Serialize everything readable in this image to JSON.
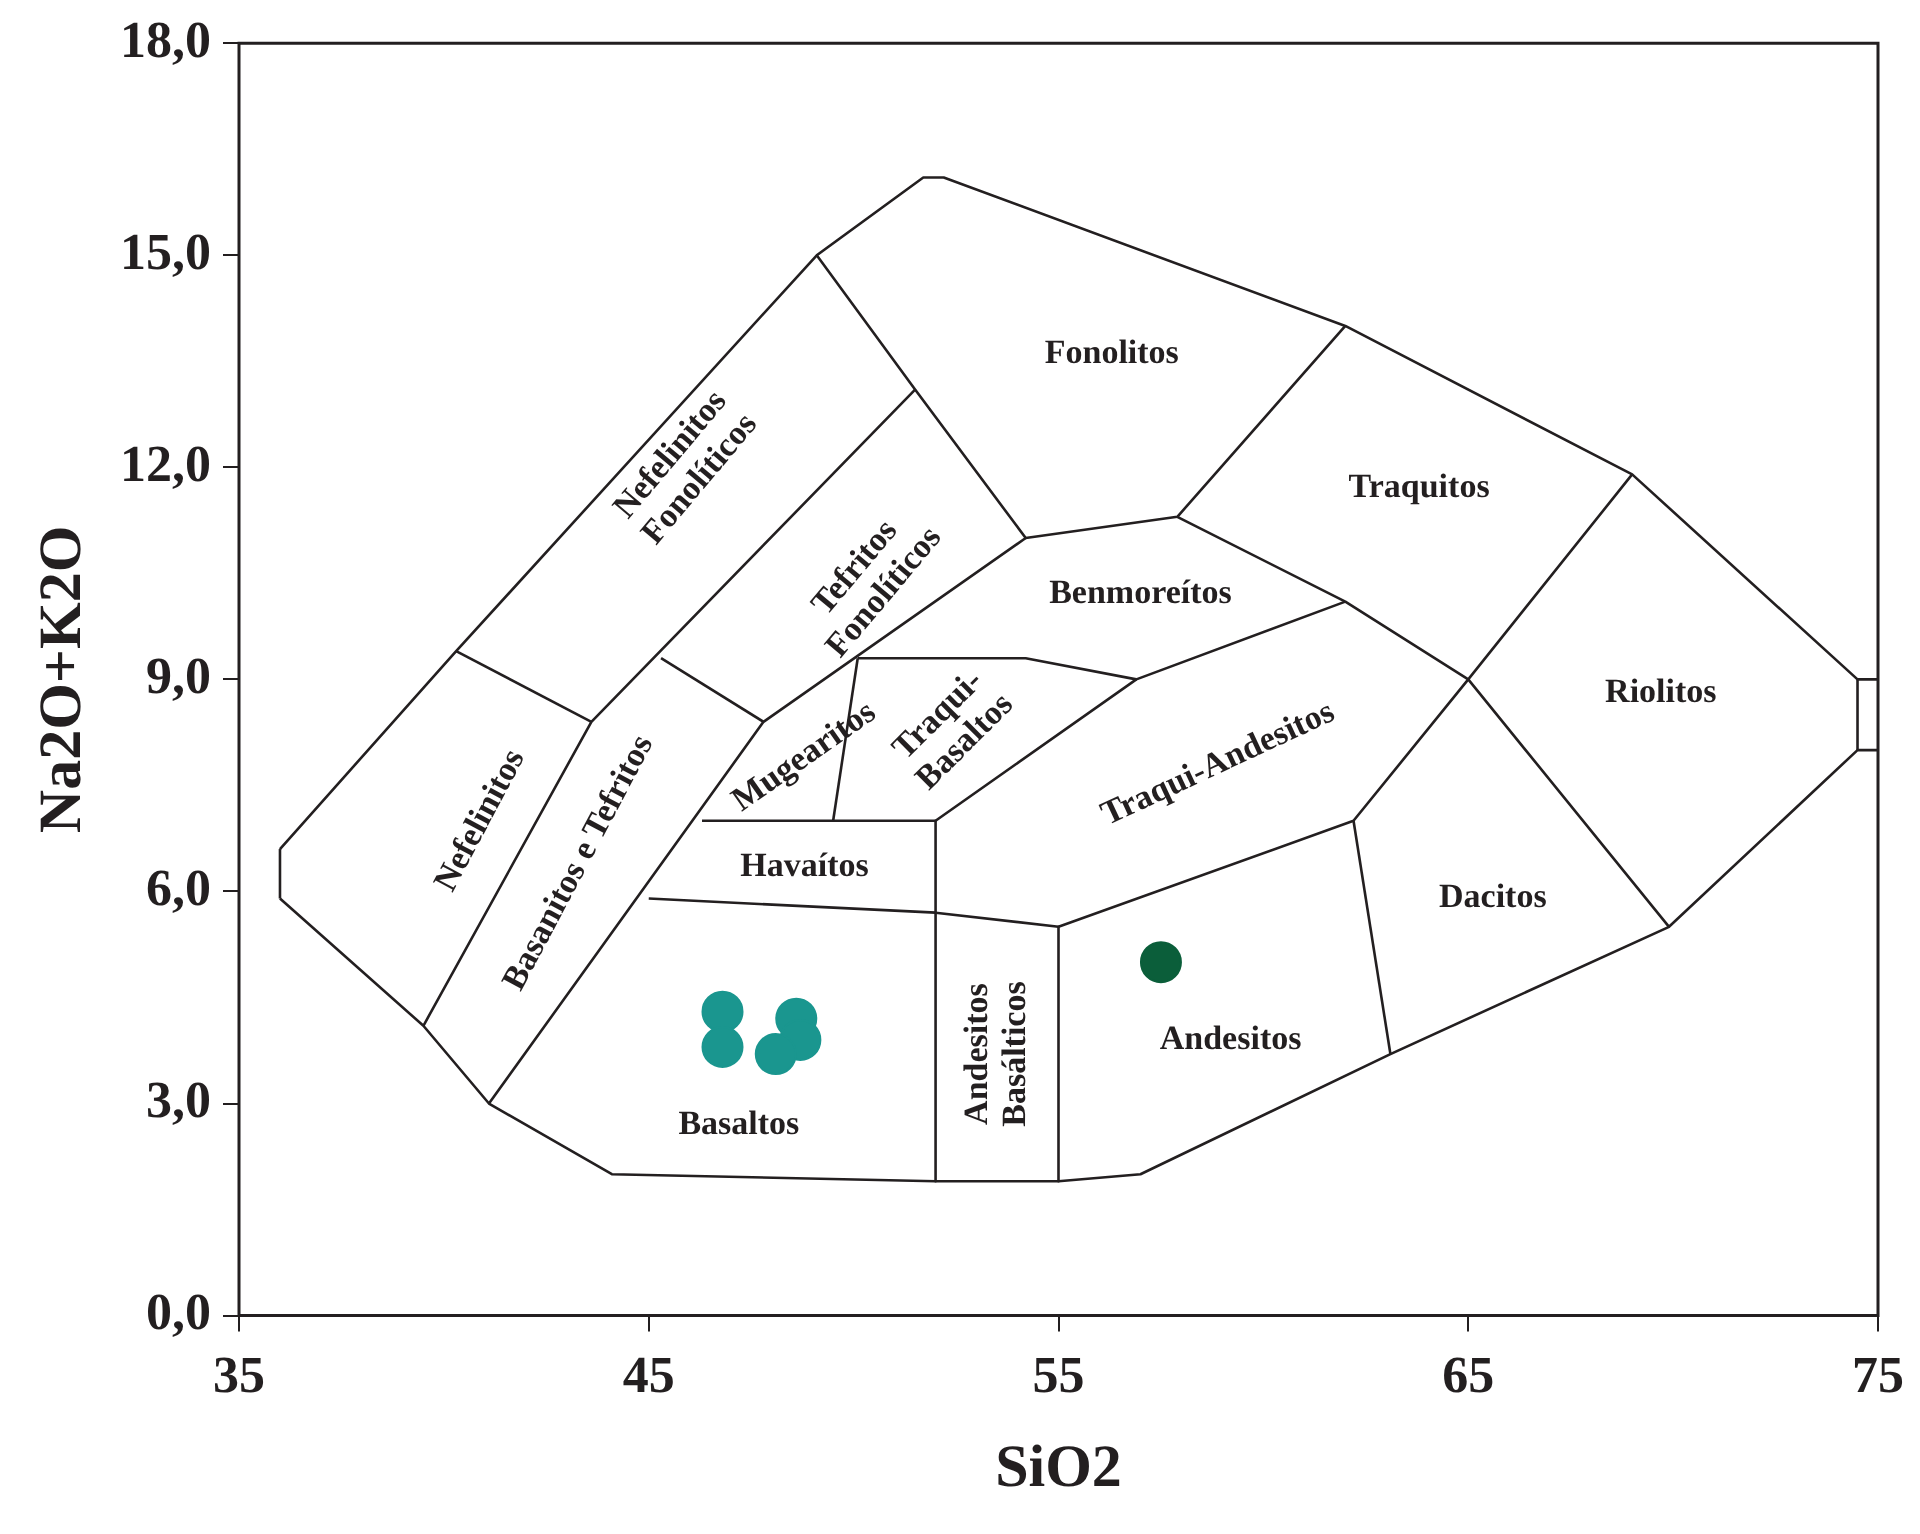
{
  "chart_data": {
    "type": "scatter",
    "xlabel": "SiO2",
    "ylabel": "Na2O+K2O",
    "xlim": [
      35,
      75
    ],
    "ylim": [
      0,
      18
    ],
    "xticks": [
      35,
      45,
      55,
      65,
      75
    ],
    "yticks": [
      {
        "value": 0,
        "label": "0,0"
      },
      {
        "value": 3,
        "label": "3,0"
      },
      {
        "value": 6,
        "label": "6,0"
      },
      {
        "value": 9,
        "label": "9,0"
      },
      {
        "value": 12,
        "label": "12,0"
      },
      {
        "value": 15,
        "label": "15,0"
      },
      {
        "value": 18,
        "label": "18,0"
      }
    ],
    "grid": false,
    "legend": false,
    "series": [
      {
        "color": "#1a968f",
        "x": [
          46.8,
          46.8,
          48.6,
          48.7,
          48.1
        ],
        "values": [
          4.3,
          3.8,
          4.2,
          3.9,
          3.7
        ]
      },
      {
        "color": "#0b5e3a",
        "x": [
          57.5
        ],
        "values": [
          5.0
        ]
      },
      {
        "type": "line",
        "color": "#231f20",
        "x": [
          36,
          39.5,
          41.1,
          44.1,
          52,
          55,
          57,
          63.1,
          69.9,
          74.5,
          75
        ],
        "values": [
          5.9,
          4.1,
          3.0,
          2.0,
          1.9,
          1.9,
          2.0,
          3.7,
          5.5,
          8.0,
          8.0
        ]
      },
      {
        "type": "line",
        "color": "#231f20",
        "x": [
          36,
          40.3,
          49.1,
          51.7,
          52.2,
          62,
          69,
          74.5,
          75
        ],
        "values": [
          6.6,
          9.4,
          15.0,
          16.1,
          16.1,
          14.0,
          11.9,
          9.0,
          9.0
        ]
      },
      {
        "type": "line",
        "color": "#231f20",
        "x": [
          36,
          36
        ],
        "values": [
          5.9,
          6.6
        ]
      },
      {
        "type": "line",
        "color": "#231f20",
        "x": [
          74.5,
          74.5
        ],
        "values": [
          8.0,
          9.0
        ]
      },
      {
        "type": "line",
        "color": "#231f20",
        "x": [
          40.3,
          43.6
        ],
        "values": [
          9.4,
          8.4
        ]
      },
      {
        "type": "line",
        "color": "#231f20",
        "x": [
          39.5,
          43.6,
          51.5
        ],
        "values": [
          4.1,
          8.4,
          13.1
        ]
      },
      {
        "type": "line",
        "color": "#231f20",
        "x": [
          49.1,
          51.5,
          54.2,
          57.9,
          62
        ],
        "values": [
          15.0,
          13.1,
          11.0,
          11.3,
          14.0
        ]
      },
      {
        "type": "line",
        "color": "#231f20",
        "x": [
          41.1,
          47.8,
          54.2
        ],
        "values": [
          3.0,
          8.4,
          11.0
        ]
      },
      {
        "type": "line",
        "color": "#231f20",
        "x": [
          45.3,
          47.8
        ],
        "values": [
          9.3,
          8.4
        ]
      },
      {
        "type": "line",
        "color": "#231f20",
        "x": [
          50.1,
          54.2,
          56.9,
          62
        ],
        "values": [
          9.3,
          9.3,
          9.0,
          10.1
        ]
      },
      {
        "type": "line",
        "color": "#231f20",
        "x": [
          57.9,
          62,
          65,
          69
        ],
        "values": [
          11.3,
          10.1,
          9.0,
          11.9
        ]
      },
      {
        "type": "line",
        "color": "#231f20",
        "x": [
          46.3,
          52,
          56.9
        ],
        "values": [
          7.0,
          7.0,
          9.0
        ]
      },
      {
        "type": "line",
        "color": "#231f20",
        "x": [
          49.5,
          50.1
        ],
        "values": [
          7.0,
          9.3
        ]
      },
      {
        "type": "line",
        "color": "#231f20",
        "x": [
          52,
          52
        ],
        "values": [
          7.0,
          1.9
        ]
      },
      {
        "type": "line",
        "color": "#231f20",
        "x": [
          45,
          52,
          55,
          62.2,
          65,
          69.9
        ],
        "values": [
          5.9,
          5.7,
          5.5,
          7.0,
          9.0,
          5.5
        ]
      },
      {
        "type": "line",
        "color": "#231f20",
        "x": [
          55,
          55
        ],
        "values": [
          5.5,
          1.9
        ]
      },
      {
        "type": "line",
        "color": "#231f20",
        "x": [
          62.2,
          63.1
        ],
        "values": [
          7.0,
          3.7
        ]
      }
    ],
    "annotations": [
      "Fonolitos",
      "Traquitos",
      "Nefelinitos\nFonolíticos",
      "Tefritos\nFonolíticos",
      "Benmoreítos",
      "Riolitos",
      "Nefelinitos",
      "Basanitos e Tefritos",
      "Mugearitos",
      "Traqui-\nBasaltos",
      "Havaítos",
      "Traqui-Andesitos",
      "Dacitos",
      "Andesitos",
      "Basaltos",
      "Andesitos\nBasálticos"
    ]
  }
}
